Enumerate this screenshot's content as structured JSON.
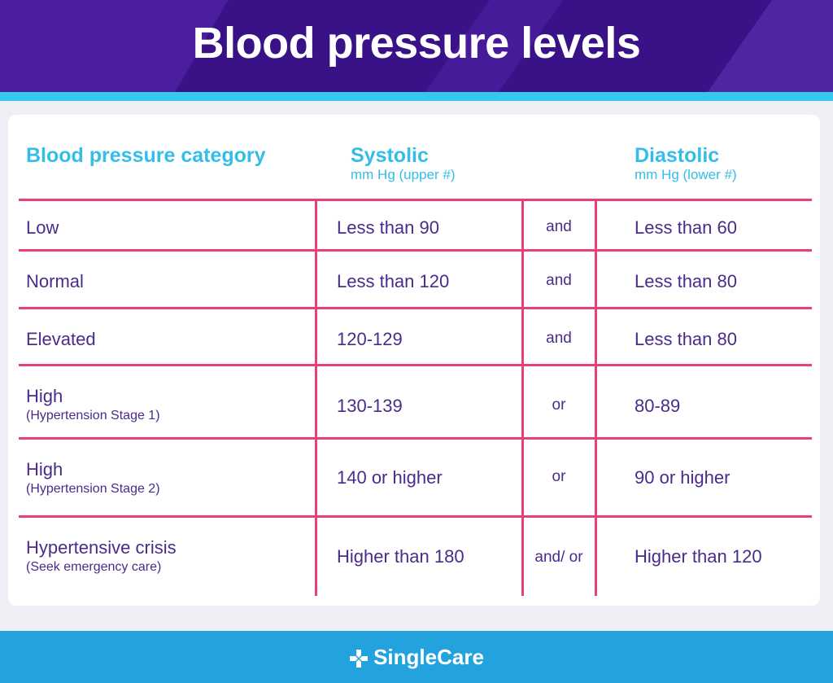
{
  "title": "Blood pressure levels",
  "columns": {
    "category": "Blood pressure category",
    "systolic": "Systolic",
    "systolic_unit": "mm Hg (upper #)",
    "diastolic": "Diastolic",
    "diastolic_unit": "mm Hg (lower #)"
  },
  "rows": [
    {
      "category": "Low",
      "note": "",
      "systolic": "Less than 90",
      "conj": "and",
      "diastolic": "Less than 60"
    },
    {
      "category": "Normal",
      "note": "",
      "systolic": "Less than 120",
      "conj": "and",
      "diastolic": "Less than 80"
    },
    {
      "category": "Elevated",
      "note": "",
      "systolic": "120-129",
      "conj": "and",
      "diastolic": "Less than 80"
    },
    {
      "category": "High",
      "note": "(Hypertension Stage 1)",
      "systolic": "130-139",
      "conj": "or",
      "diastolic": "80-89"
    },
    {
      "category": "High",
      "note": "(Hypertension Stage 2)",
      "systolic": "140 or higher",
      "conj": "or",
      "diastolic": "90 or higher"
    },
    {
      "category": "Hypertensive crisis",
      "note": "(Seek emergency care)",
      "systolic": "Higher than 180",
      "conj": "and/ or",
      "diastolic": "Higher than 120"
    }
  ],
  "footer": {
    "brand": "SingleCare",
    "logo_icon": "singlecare-cross-icon"
  },
  "colors": {
    "header_bg": "#3a1287",
    "accent_cyan": "#34bde8",
    "row_line": "#e84178",
    "text": "#4a2b8c",
    "footer_bg": "#23a3dd"
  }
}
